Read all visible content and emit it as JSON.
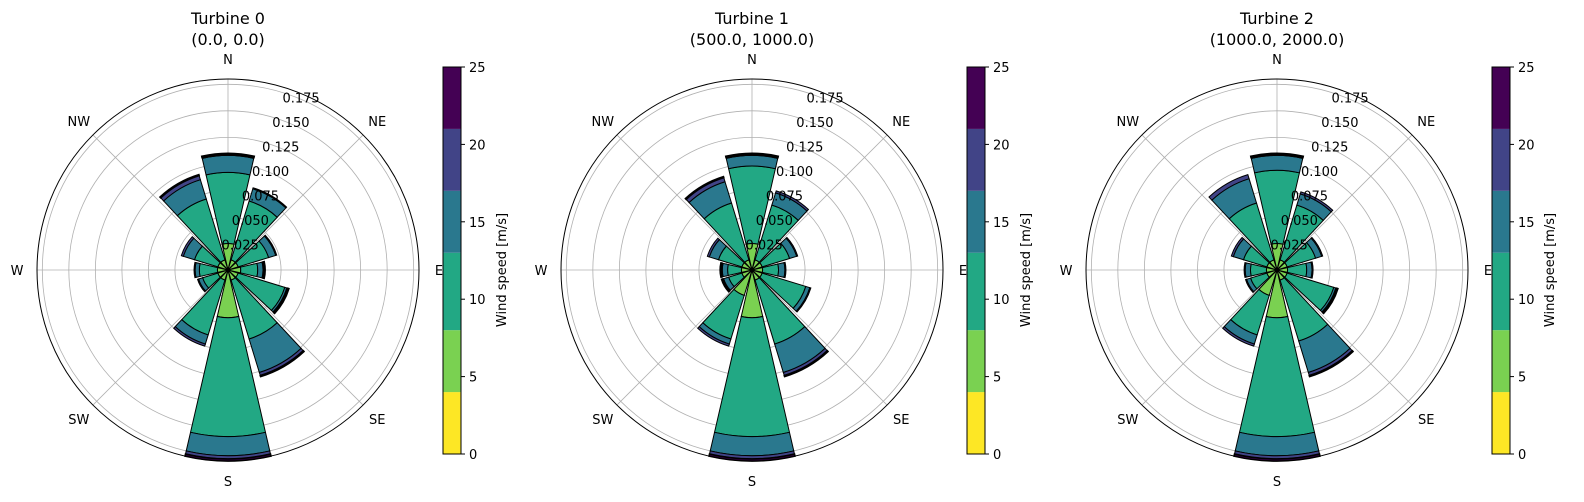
{
  "chart_data": [
    {
      "type": "bar",
      "subtype": "polar-stacked-windrose",
      "title_lines": [
        "Turbine 0",
        "(0.0, 0.0)"
      ],
      "directions": [
        "N",
        "NE",
        "E",
        "SE",
        "S",
        "SW",
        "W",
        "NW"
      ],
      "radial_ticks": [
        "0.025",
        "0.050",
        "0.075",
        "0.100",
        "0.125",
        "0.150",
        "0.175"
      ],
      "radial_tick_values": [
        0.025,
        0.05,
        0.075,
        0.1,
        0.125,
        0.15,
        0.175
      ],
      "rlim": [
        0,
        0.18
      ],
      "sector_angles_deg": [
        0,
        30,
        60,
        90,
        120,
        150,
        180,
        210,
        240,
        270,
        300,
        330
      ],
      "bins": [
        [
          0,
          5
        ],
        [
          5,
          10
        ],
        [
          10,
          15
        ],
        [
          15,
          20
        ],
        [
          20,
          25
        ]
      ],
      "stack_cumulative": [
        [
          0.025,
          0.092,
          0.108,
          0.109,
          0.11
        ],
        [
          0.01,
          0.068,
          0.08,
          0.081,
          0.081
        ],
        [
          0.01,
          0.04,
          0.047,
          0.048,
          0.048
        ],
        [
          0.012,
          0.028,
          0.033,
          0.034,
          0.035
        ],
        [
          0.01,
          0.056,
          0.058,
          0.059,
          0.06
        ],
        [
          0.01,
          0.068,
          0.101,
          0.104,
          0.105
        ],
        [
          0.045,
          0.157,
          0.175,
          0.178,
          0.18
        ],
        [
          0.01,
          0.064,
          0.073,
          0.075,
          0.075
        ],
        [
          0.01,
          0.025,
          0.029,
          0.03,
          0.03
        ],
        [
          0.01,
          0.027,
          0.031,
          0.032,
          0.032
        ],
        [
          0.01,
          0.033,
          0.044,
          0.046,
          0.046
        ],
        [
          0.01,
          0.07,
          0.089,
          0.093,
          0.094
        ]
      ],
      "grid": true
    },
    {
      "type": "bar",
      "subtype": "polar-stacked-windrose",
      "title_lines": [
        "Turbine 1",
        "(500.0, 1000.0)"
      ],
      "directions": [
        "N",
        "NE",
        "E",
        "SE",
        "S",
        "SW",
        "W",
        "NW"
      ],
      "radial_ticks": [
        "0.025",
        "0.050",
        "0.075",
        "0.100",
        "0.125",
        "0.150",
        "0.175"
      ],
      "radial_tick_values": [
        0.025,
        0.05,
        0.075,
        0.1,
        0.125,
        0.15,
        0.175
      ],
      "rlim": [
        0,
        0.18
      ],
      "sector_angles_deg": [
        0,
        30,
        60,
        90,
        120,
        150,
        180,
        210,
        240,
        270,
        300,
        330
      ],
      "bins": [
        [
          0,
          5
        ],
        [
          5,
          10
        ],
        [
          10,
          15
        ],
        [
          15,
          20
        ],
        [
          20,
          25
        ]
      ],
      "stack_cumulative": [
        [
          0.025,
          0.098,
          0.108,
          0.109,
          0.11
        ],
        [
          0.01,
          0.064,
          0.076,
          0.078,
          0.078
        ],
        [
          0.01,
          0.037,
          0.044,
          0.045,
          0.045
        ],
        [
          0.01,
          0.025,
          0.031,
          0.032,
          0.032
        ],
        [
          0.01,
          0.053,
          0.057,
          0.058,
          0.058
        ],
        [
          0.01,
          0.073,
          0.101,
          0.104,
          0.105
        ],
        [
          0.045,
          0.157,
          0.175,
          0.178,
          0.18
        ],
        [
          0.025,
          0.068,
          0.073,
          0.075,
          0.075
        ],
        [
          0.01,
          0.023,
          0.028,
          0.029,
          0.03
        ],
        [
          0.01,
          0.023,
          0.028,
          0.029,
          0.03
        ],
        [
          0.01,
          0.033,
          0.042,
          0.044,
          0.044
        ],
        [
          0.01,
          0.066,
          0.087,
          0.091,
          0.092
        ]
      ],
      "grid": true
    },
    {
      "type": "bar",
      "subtype": "polar-stacked-windrose",
      "title_lines": [
        "Turbine 2",
        "(1000.0, 2000.0)"
      ],
      "directions": [
        "N",
        "NE",
        "E",
        "SE",
        "S",
        "SW",
        "W",
        "NW"
      ],
      "radial_ticks": [
        "0.025",
        "0.050",
        "0.075",
        "0.100",
        "0.125",
        "0.150",
        "0.175"
      ],
      "radial_tick_values": [
        0.025,
        0.05,
        0.075,
        0.1,
        0.125,
        0.15,
        0.175
      ],
      "rlim": [
        0,
        0.18
      ],
      "sector_angles_deg": [
        0,
        30,
        60,
        90,
        120,
        150,
        180,
        210,
        240,
        270,
        300,
        330
      ],
      "bins": [
        [
          0,
          5
        ],
        [
          5,
          10
        ],
        [
          10,
          15
        ],
        [
          15,
          20
        ],
        [
          20,
          25
        ]
      ],
      "stack_cumulative": [
        [
          0.025,
          0.094,
          0.108,
          0.109,
          0.11
        ],
        [
          0.01,
          0.064,
          0.075,
          0.077,
          0.077
        ],
        [
          0.01,
          0.038,
          0.044,
          0.045,
          0.045
        ],
        [
          0.01,
          0.028,
          0.033,
          0.034,
          0.034
        ],
        [
          0.01,
          0.056,
          0.058,
          0.059,
          0.06
        ],
        [
          0.01,
          0.07,
          0.101,
          0.104,
          0.105
        ],
        [
          0.045,
          0.157,
          0.175,
          0.178,
          0.18
        ],
        [
          0.025,
          0.064,
          0.073,
          0.075,
          0.075
        ],
        [
          0.01,
          0.026,
          0.03,
          0.031,
          0.031
        ],
        [
          0.01,
          0.025,
          0.03,
          0.031,
          0.031
        ],
        [
          0.01,
          0.033,
          0.043,
          0.045,
          0.045
        ],
        [
          0.01,
          0.066,
          0.09,
          0.094,
          0.094
        ]
      ],
      "grid": true
    }
  ],
  "colorbar": {
    "label": "Wind speed [m/s]",
    "ticks": [
      "0",
      "5",
      "10",
      "15",
      "20",
      "25"
    ],
    "tick_values": [
      0,
      5,
      10,
      15,
      20,
      25
    ],
    "range": [
      0,
      25
    ],
    "segments": [
      {
        "from": 0,
        "to": 4,
        "color": "#fde725"
      },
      {
        "from": 4,
        "to": 8,
        "color": "#7ad151"
      },
      {
        "from": 8,
        "to": 13,
        "color": "#22a884"
      },
      {
        "from": 13,
        "to": 17,
        "color": "#2a788e"
      },
      {
        "from": 17,
        "to": 21,
        "color": "#414487"
      },
      {
        "from": 21,
        "to": 25,
        "color": "#440154"
      }
    ]
  },
  "bin_colors": [
    "#7ad151",
    "#22a884",
    "#2a788e",
    "#414487",
    "#440154"
  ]
}
